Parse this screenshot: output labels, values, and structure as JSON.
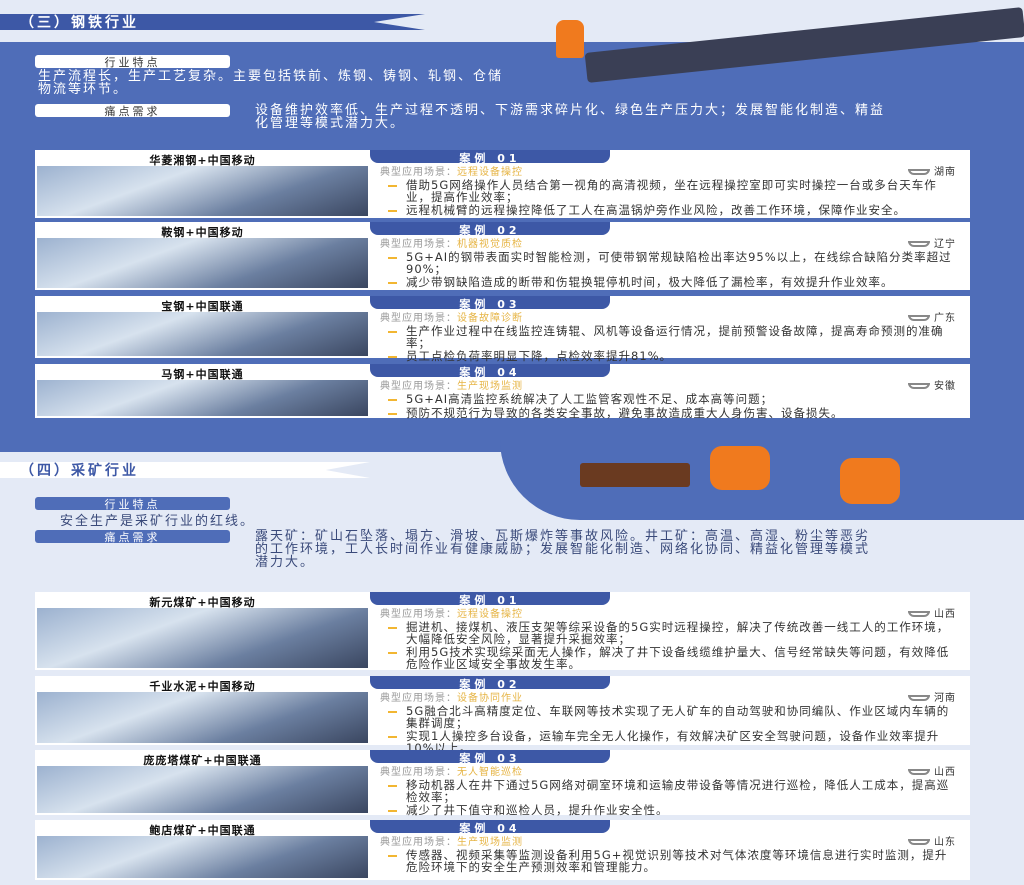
{
  "steel": {
    "title": "（三）钢铁行业",
    "feature_label": "行业特点",
    "feature_text": "生产流程长，生产工艺复杂。主要包括铁前、炼钢、铸钢、轧钢、仓储物流等环节。",
    "pain_label": "痛点需求",
    "pain_text": "设备维护效率低、生产过程不透明、下游需求碎片化、绿色生产压力大；发展智能化制造、精益化管理等模式潜力大。",
    "cases": [
      {
        "caption": "华菱湘钢+中国移动",
        "tab": "案例 01",
        "scene_label": "典型应用场景：",
        "scene": "远程设备操控",
        "location": "湖南",
        "bullets": [
          "借助5G网络操作人员结合第一视角的高清视频，坐在远程操控室即可实时操控一台或多台天车作业，提高作业效率；",
          "远程机械臂的远程操控降低了工人在高温锅炉旁作业风险，改善工作环境，保障作业安全。"
        ]
      },
      {
        "caption": "鞍钢+中国移动",
        "tab": "案例 02",
        "scene_label": "典型应用场景：",
        "scene": "机器视觉质检",
        "location": "辽宁",
        "bullets": [
          "5G+AI的钢带表面实时智能检测，可使带钢常规缺陷检出率达95%以上，在线综合缺陷分类率超过90%；",
          "减少带钢缺陷造成的断带和伤辊换辊停机时间，极大降低了漏检率，有效提升作业效率。"
        ]
      },
      {
        "caption": "宝钢+中国联通",
        "tab": "案例 03",
        "scene_label": "典型应用场景：",
        "scene": "设备故障诊断",
        "location": "广东",
        "bullets": [
          "生产作业过程中在线监控连铸辊、风机等设备运行情况，提前预警设备故障，提高寿命预测的准确率；",
          "员工点检负荷率明显下降，点检效率提升81%。"
        ]
      },
      {
        "caption": "马钢+中国联通",
        "tab": "案例 04",
        "scene_label": "典型应用场景：",
        "scene": "生产现场监测",
        "location": "安徽",
        "bullets": [
          "5G+AI高清监控系统解决了人工监管客观性不足、成本高等问题；",
          "预防不规范行为导致的各类安全事故，避免事故造成重大人身伤害、设备损失。"
        ]
      }
    ]
  },
  "mining": {
    "title": "（四）采矿行业",
    "feature_label": "行业特点",
    "feature_text": "安全生产是采矿行业的红线。",
    "pain_label": "痛点需求",
    "pain_text": "露天矿：矿山石坠落、塌方、滑坡、瓦斯爆炸等事故风险。井工矿：高温、高湿、粉尘等恶劣的工作环境，工人长时间作业有健康威胁；发展智能化制造、网络化协同、精益化管理等模式潜力大。",
    "cases": [
      {
        "caption": "新元煤矿+中国移动",
        "tab": "案例 01",
        "scene_label": "典型应用场景：",
        "scene": "远程设备操控",
        "location": "山西",
        "bullets": [
          "掘进机、接煤机、液压支架等综采设备的5G实时远程操控，解决了传统改善一线工人的工作环境，大幅降低安全风险，显著提升采掘效率；",
          "利用5G技术实现综采面无人操作，解决了井下设备线缆维护量大、信号经常缺失等问题，有效降低危险作业区域安全事故发生率。"
        ]
      },
      {
        "caption": "千业水泥+中国移动",
        "tab": "案例 02",
        "scene_label": "典型应用场景：",
        "scene": "设备协同作业",
        "location": "河南",
        "bullets": [
          "5G融合北斗高精度定位、车联网等技术实现了无人矿车的自动驾驶和协同编队、作业区域内车辆的集群调度；",
          "实现1人操控多台设备，运输车完全无人化操作，有效解决矿区安全驾驶问题，设备作业效率提升10%以上。"
        ]
      },
      {
        "caption": "庞庞塔煤矿+中国联通",
        "tab": "案例 03",
        "scene_label": "典型应用场景：",
        "scene": "无人智能巡检",
        "location": "山西",
        "bullets": [
          "移动机器人在井下通过5G网络对硐室环境和运输皮带设备等情况进行巡检，降低人工成本，提高巡检效率；",
          "减少了井下值守和巡检人员，提升作业安全性。"
        ]
      },
      {
        "caption": "鲍店煤矿+中国联通",
        "tab": "案例 04",
        "scene_label": "典型应用场景：",
        "scene": "生产现场监测",
        "location": "山东",
        "bullets": [
          "传感器、视频采集等监测设备利用5G+视觉识别等技术对气体浓度等环境信息进行实时监测，提升危险环境下的安全生产预测效率和管理能力。"
        ]
      }
    ]
  },
  "colors": {
    "primary": "#4f6db8",
    "banner": "#3d58a6",
    "accent": "#e6b444",
    "worker": "#f07a1e"
  }
}
